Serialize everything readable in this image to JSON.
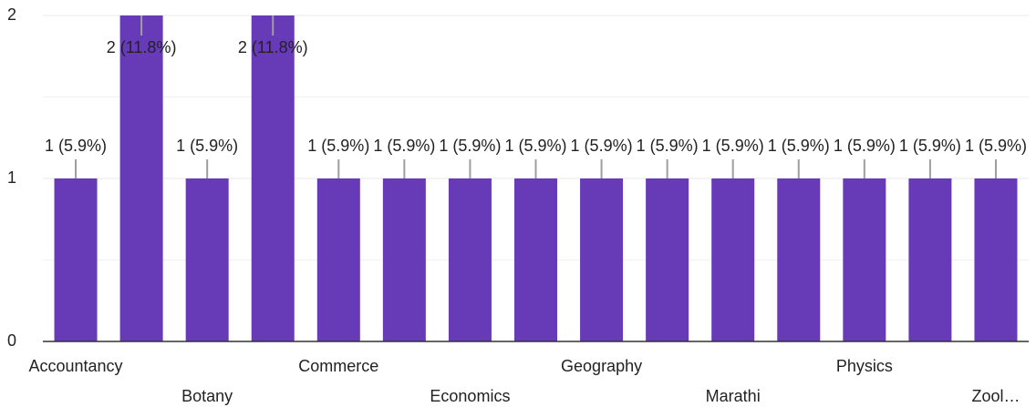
{
  "chart_data": {
    "type": "bar",
    "categories": [
      "Accountancy",
      null,
      "Botany",
      null,
      "Commerce",
      null,
      "Economics",
      null,
      "Geography",
      null,
      "Marathi",
      null,
      "Physics",
      null,
      "Zool…"
    ],
    "values": [
      1,
      2,
      1,
      2,
      1,
      1,
      1,
      1,
      1,
      1,
      1,
      1,
      1,
      1,
      1
    ],
    "value_labels": [
      "1 (5.9%)",
      "2 (11.8%)",
      "1 (5.9%)",
      "2 (11.8%)",
      "1 (5.9%)",
      "1 (5.9%)",
      "1 (5.9%)",
      "1 (5.9%)",
      "1 (5.9%)",
      "1 (5.9%)",
      "1 (5.9%)",
      "1 (5.9%)",
      "1 (5.9%)",
      "1 (5.9%)",
      "1 (5.9%)"
    ],
    "color": "#673ab7",
    "ylim": [
      0,
      2
    ],
    "yticks": [
      0,
      1,
      2
    ],
    "grid": true
  }
}
